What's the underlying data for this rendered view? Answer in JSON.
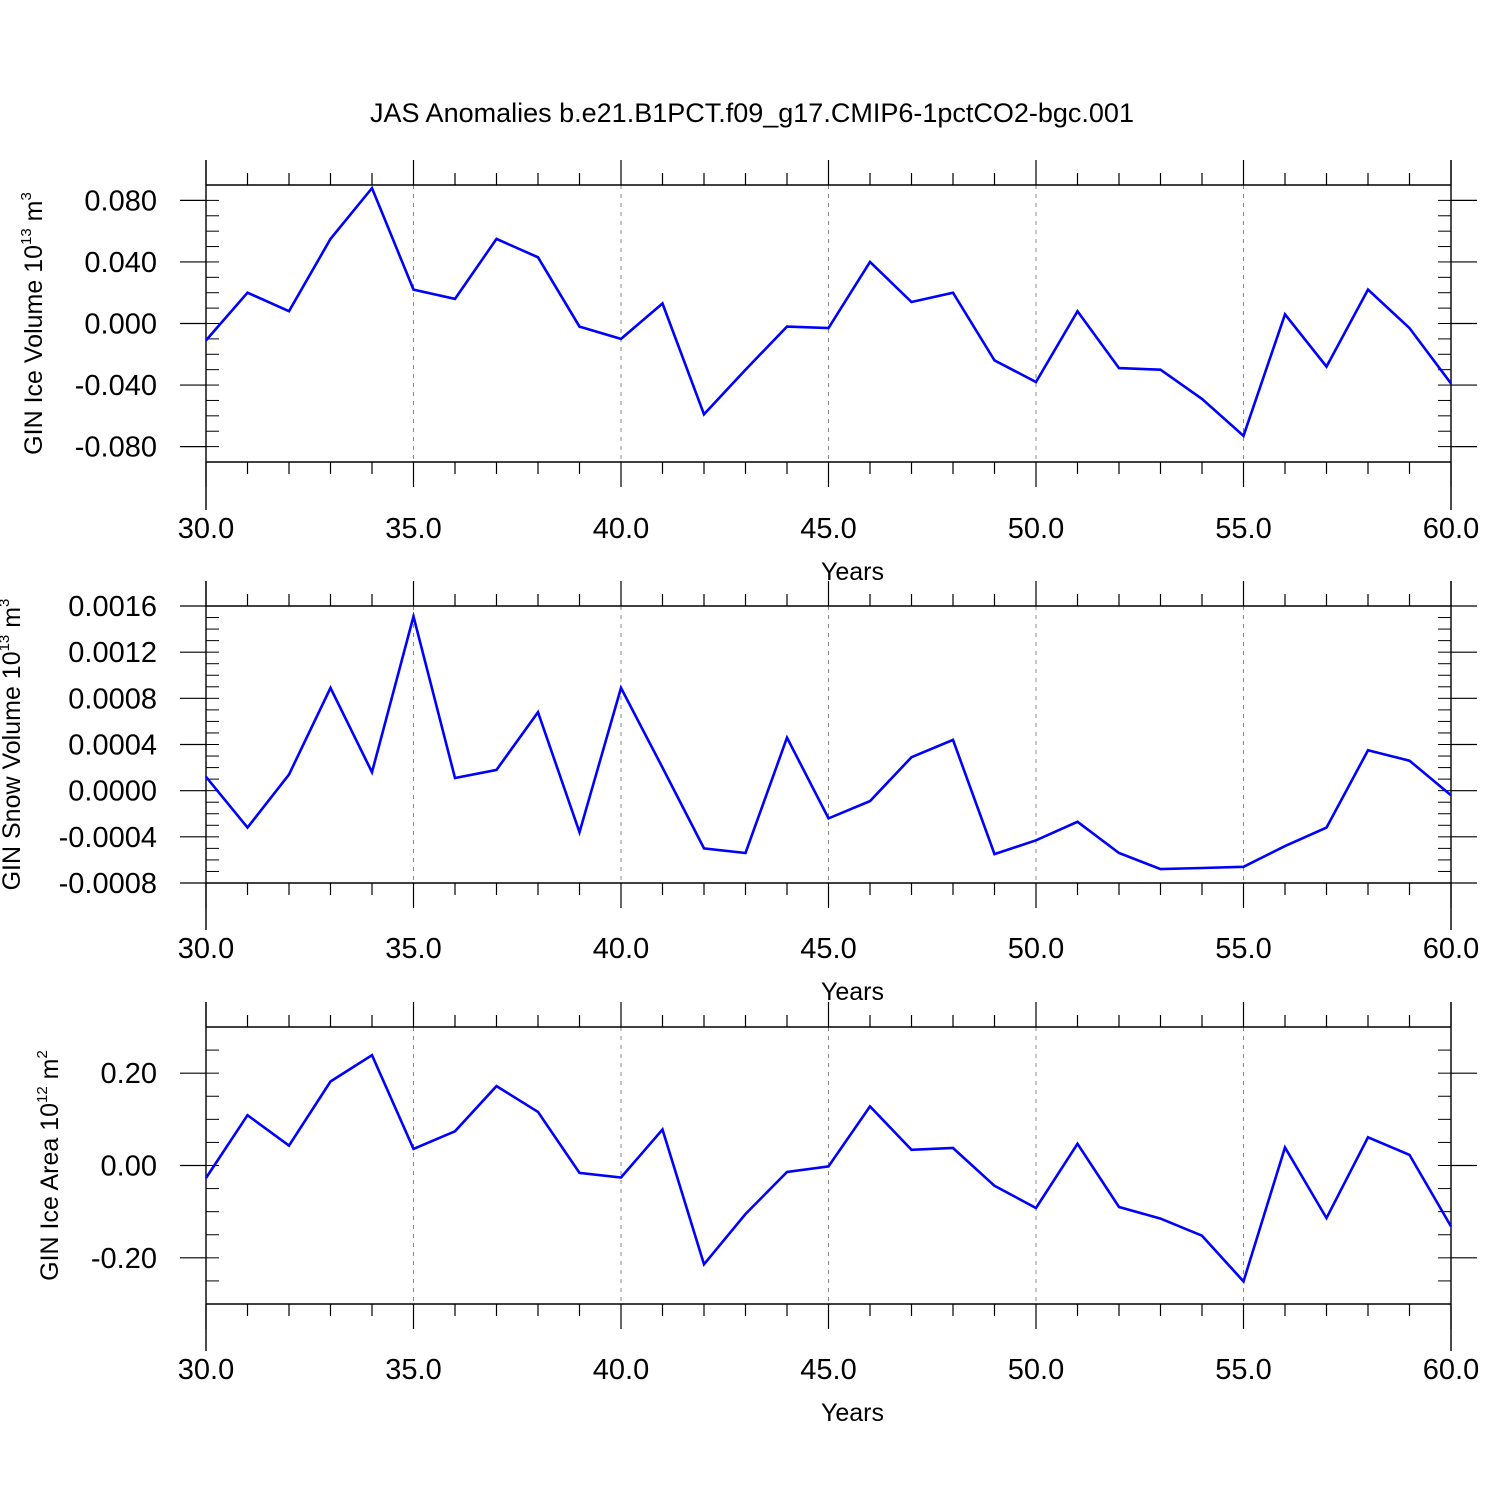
{
  "figure_title": "JAS Anomalies b.e21.B1PCT.f09_g17.CMIP6-1pctCO2-bgc.001",
  "colors": {
    "line": "#0000ff",
    "axis": "#000000",
    "grid": "#888888"
  },
  "chart_data": [
    {
      "type": "line",
      "xlabel": "Years",
      "ylabel": {
        "text": "GIN Ice Volume 10",
        "exp": "13",
        "unit": "m",
        "unit_exp": "3"
      },
      "xlim": [
        30,
        60
      ],
      "ylim": [
        -0.09,
        0.09
      ],
      "grid": "dashed vertical at x-major ticks",
      "x_ticks": [
        30,
        35,
        40,
        45,
        50,
        55,
        60
      ],
      "x_tick_labels": [
        "30.0",
        "35.0",
        "40.0",
        "45.0",
        "50.0",
        "55.0",
        "60.0"
      ],
      "y_ticks": [
        0.08,
        0.04,
        0.0,
        -0.04,
        -0.08
      ],
      "y_tick_labels": [
        "0.080",
        "0.040",
        "0.000",
        "-0.040",
        "-0.080"
      ],
      "y_minor_step": 0.01,
      "x": [
        30,
        31,
        32,
        33,
        34,
        35,
        36,
        37,
        38,
        39,
        40,
        41,
        42,
        43,
        44,
        45,
        46,
        47,
        48,
        49,
        50,
        51,
        52,
        53,
        54,
        55,
        56,
        57,
        58,
        59,
        60
      ],
      "series": [
        {
          "values": [
            -0.011,
            0.02,
            0.008,
            0.055,
            0.088,
            0.022,
            0.016,
            0.055,
            0.043,
            -0.002,
            -0.01,
            0.013,
            -0.059,
            -0.03,
            -0.002,
            -0.003,
            0.04,
            0.014,
            0.02,
            -0.024,
            -0.038,
            0.008,
            -0.029,
            -0.03,
            -0.049,
            -0.073,
            0.006,
            -0.028,
            0.022,
            -0.003,
            -0.039
          ]
        }
      ]
    },
    {
      "type": "line",
      "xlabel": "Years",
      "ylabel": {
        "text": "GIN Snow Volume 10",
        "exp": "13",
        "unit": "m",
        "unit_exp": "3"
      },
      "xlim": [
        30,
        60
      ],
      "ylim": [
        -0.0008,
        0.0016
      ],
      "grid": "dashed vertical at x-major ticks",
      "x_ticks": [
        30,
        35,
        40,
        45,
        50,
        55,
        60
      ],
      "x_tick_labels": [
        "30.0",
        "35.0",
        "40.0",
        "45.0",
        "50.0",
        "55.0",
        "60.0"
      ],
      "y_ticks": [
        0.0016,
        0.0012,
        0.0008,
        0.0004,
        0.0,
        -0.0004,
        -0.0008
      ],
      "y_tick_labels": [
        "0.0016",
        "0.0012",
        "0.0008",
        "0.0004",
        "0.0000",
        "-0.0004",
        "-0.0008"
      ],
      "y_minor_step": 0.0001,
      "x": [
        30,
        31,
        32,
        33,
        34,
        35,
        36,
        37,
        38,
        39,
        40,
        41,
        42,
        43,
        44,
        45,
        46,
        47,
        48,
        49,
        50,
        51,
        52,
        53,
        54,
        55,
        56,
        57,
        58,
        59,
        60
      ],
      "series": [
        {
          "values": [
            0.00012,
            -0.00032,
            0.00014,
            0.00089,
            0.00016,
            0.00151,
            0.00011,
            0.00018,
            0.00068,
            -0.00036,
            0.00089,
            0.0002,
            -0.0005,
            -0.00054,
            0.00046,
            -0.00024,
            -9e-05,
            0.00029,
            0.00044,
            -0.00055,
            -0.00043,
            -0.00027,
            -0.00054,
            -0.00068,
            -0.00067,
            -0.00066,
            -0.00048,
            -0.00032,
            0.00035,
            0.00026,
            -4e-05
          ]
        }
      ]
    },
    {
      "type": "line",
      "xlabel": "Years",
      "ylabel": {
        "text": "GIN Ice Area 10",
        "exp": "12",
        "unit": "m",
        "unit_exp": "2"
      },
      "xlim": [
        30,
        60
      ],
      "ylim": [
        -0.3,
        0.3
      ],
      "grid": "dashed vertical at x-major ticks",
      "x_ticks": [
        30,
        35,
        40,
        45,
        50,
        55,
        60
      ],
      "x_tick_labels": [
        "30.0",
        "35.0",
        "40.0",
        "45.0",
        "50.0",
        "55.0",
        "60.0"
      ],
      "y_ticks": [
        0.2,
        0.0,
        -0.2
      ],
      "y_tick_labels": [
        "0.20",
        "0.00",
        "-0.20"
      ],
      "y_minor_step": 0.05,
      "x": [
        30,
        31,
        32,
        33,
        34,
        35,
        36,
        37,
        38,
        39,
        40,
        41,
        42,
        43,
        44,
        45,
        46,
        47,
        48,
        49,
        50,
        51,
        52,
        53,
        54,
        55,
        56,
        57,
        58,
        59,
        60
      ],
      "series": [
        {
          "values": [
            -0.027,
            0.109,
            0.043,
            0.182,
            0.239,
            0.036,
            0.074,
            0.172,
            0.116,
            -0.016,
            -0.026,
            0.078,
            -0.214,
            -0.105,
            -0.014,
            -0.002,
            0.128,
            0.034,
            0.038,
            -0.044,
            -0.092,
            0.047,
            -0.09,
            -0.115,
            -0.152,
            -0.251,
            0.039,
            -0.114,
            0.061,
            0.023,
            -0.132
          ]
        }
      ]
    }
  ]
}
